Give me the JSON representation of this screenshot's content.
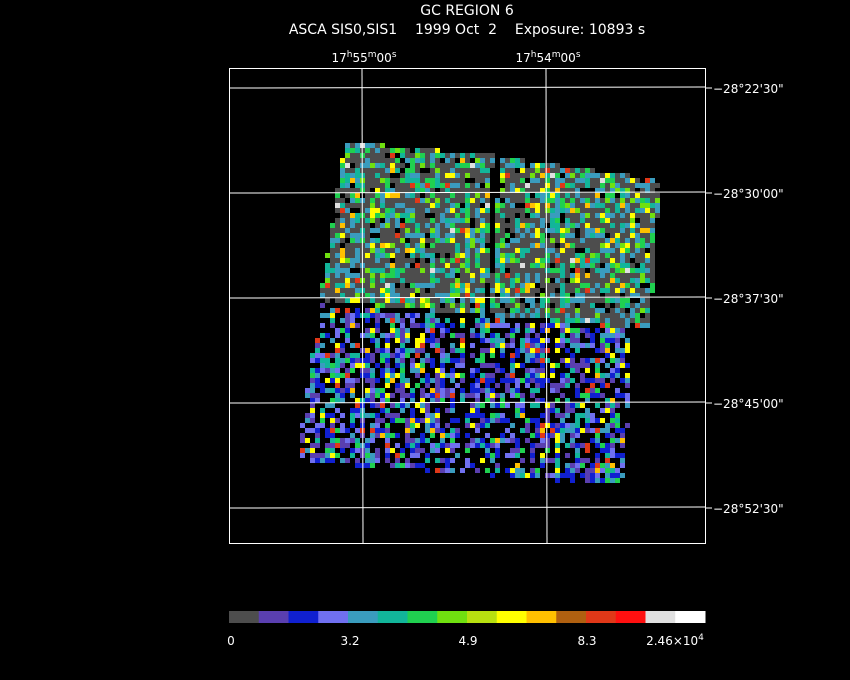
{
  "title": "GC REGION 6",
  "subtitle": "ASCA SIS0,SIS1    1999 Oct  2    Exposure: 10893 s",
  "ra_labels": [
    [
      {
        "text": "17"
      },
      {
        "text": "h",
        "sup": true
      },
      {
        "text": "55"
      },
      {
        "text": "m",
        "sup": true
      },
      {
        "text": "00"
      },
      {
        "text": "s",
        "sup": true
      }
    ],
    [
      {
        "text": "17"
      },
      {
        "text": "h",
        "sup": true
      },
      {
        "text": "54"
      },
      {
        "text": "m",
        "sup": true
      },
      {
        "text": "00"
      },
      {
        "text": "s",
        "sup": true
      }
    ]
  ],
  "dec_labels": [
    "−28°22'30\"",
    "−28°30'00\"",
    "−28°37'30\"",
    "−28°45'00\"",
    "−28°52'30\""
  ],
  "colorbar": {
    "colors": [
      "#4d4d4d",
      "#5a3fb0",
      "#1020d0",
      "#7070f0",
      "#3a9cbe",
      "#12b59a",
      "#20d050",
      "#70e010",
      "#b8e010",
      "#ffff00",
      "#ffc000",
      "#b06010",
      "#e03818",
      "#ff1010",
      "#e0e0e0",
      "#ffffff"
    ],
    "labels": [
      [
        {
          "text": "0"
        }
      ],
      [
        {
          "text": "3.2"
        }
      ],
      [
        {
          "text": "4.9"
        }
      ],
      [
        {
          "text": "8.3"
        }
      ],
      [
        {
          "text": "2.46×10"
        },
        {
          "text": "4",
          "sup": true
        }
      ]
    ]
  }
}
